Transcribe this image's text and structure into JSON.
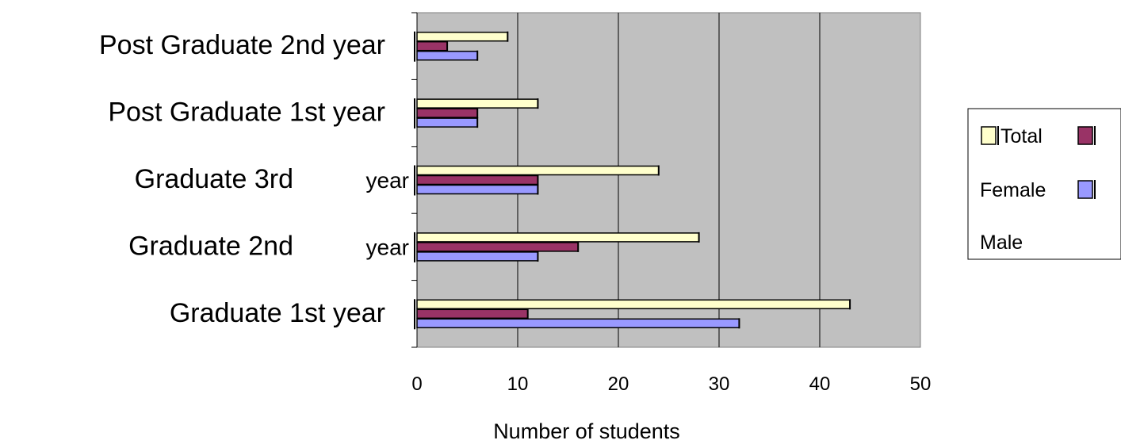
{
  "chart_data": {
    "type": "bar",
    "orientation": "horizontal",
    "categories": [
      "Graduate 1st  year",
      "Graduate 2nd          year",
      "Graduate 3rd          year",
      "Post Graduate  1st year",
      "Post Graduate  2nd year"
    ],
    "category_lines": [
      [
        "Graduate 1st  year",
        ""
      ],
      [
        "Graduate 2nd",
        "year"
      ],
      [
        "Graduate 3rd",
        "year"
      ],
      [
        "Post Graduate  1st year",
        ""
      ],
      [
        "Post Graduate  2nd year",
        ""
      ]
    ],
    "series": [
      {
        "name": "Total",
        "color": "#ffffcc",
        "values": [
          43,
          28,
          24,
          12,
          9
        ]
      },
      {
        "name": "Female",
        "color": "#993366",
        "values": [
          11,
          16,
          12,
          6,
          3
        ]
      },
      {
        "name": "Male",
        "color": "#9999ff",
        "values": [
          32,
          12,
          12,
          6,
          6
        ]
      }
    ],
    "legend_labels": [
      "Total",
      "Female",
      "Male"
    ],
    "xlabel": "Number of students",
    "xlim": [
      0,
      50
    ],
    "xticks": [
      "0",
      "10",
      "20",
      "30",
      "40",
      "50"
    ],
    "grid": true,
    "plot_background": "#c0c0c0",
    "legend_position": "right"
  }
}
